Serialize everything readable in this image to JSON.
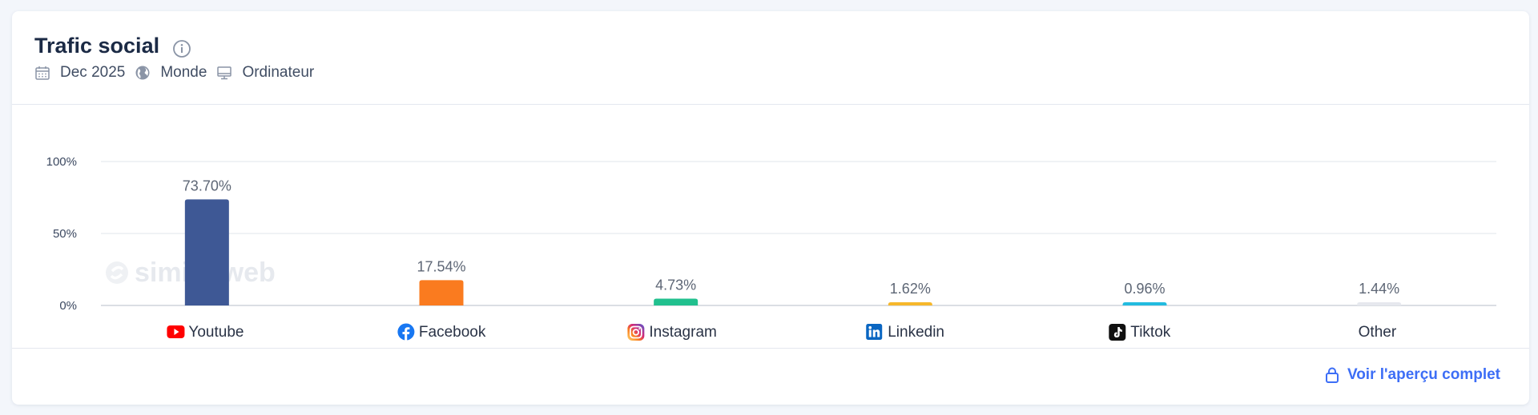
{
  "widget": {
    "title": "Trafic social",
    "filters": {
      "date": "Dec 2025",
      "region": "Monde",
      "device": "Ordinateur"
    },
    "watermark": "similarweb",
    "cta_label": "Voir l'aperçu complet"
  },
  "colors": {
    "accent": "#3d6ef6",
    "grid": "#e6e9ef",
    "axis": "#c5cad3"
  },
  "chart_data": {
    "type": "bar",
    "categories": [
      "Youtube",
      "Facebook",
      "Instagram",
      "Linkedin",
      "Tiktok",
      "Other"
    ],
    "values": [
      73.7,
      17.54,
      4.73,
      1.62,
      0.96,
      1.44
    ],
    "value_labels": [
      "73.70%",
      "17.54%",
      "4.73%",
      "1.62%",
      "0.96%",
      "1.44%"
    ],
    "bar_colors": [
      "#3e5895",
      "#fa7b1f",
      "#21c08e",
      "#f6b72b",
      "#22bbdf",
      "#e6e8ee"
    ],
    "icons": [
      "youtube-icon",
      "facebook-icon",
      "instagram-icon",
      "linkedin-icon",
      "tiktok-icon",
      ""
    ],
    "yticks": [
      0,
      50,
      100
    ],
    "ytick_labels": [
      "0%",
      "50%",
      "100%"
    ],
    "ylim": [
      0,
      100
    ],
    "grid": true,
    "title": "Trafic social",
    "xlabel": "",
    "ylabel": ""
  }
}
